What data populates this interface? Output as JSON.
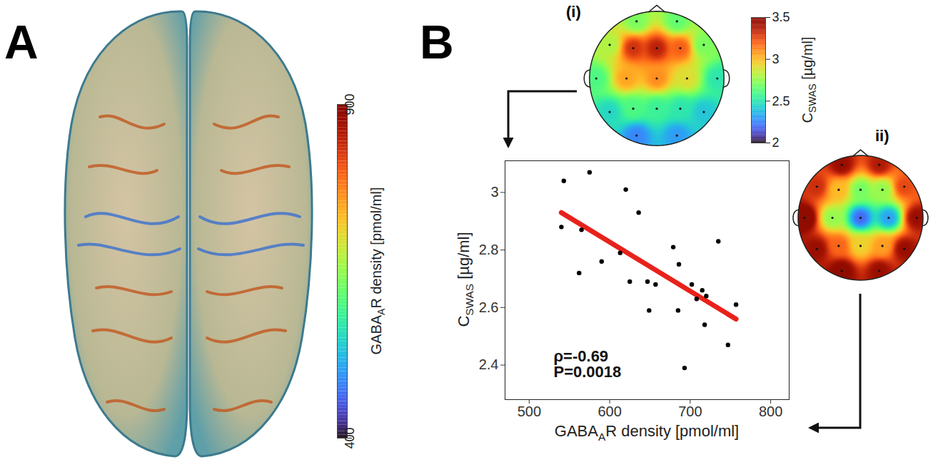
{
  "panels": {
    "A": {
      "letter": "A",
      "colorbar": {
        "label": {
          "main": "GABA",
          "sub": "A",
          "after": "R density [pmol/ml]"
        },
        "lim": [
          400,
          900
        ],
        "ticks": [
          400,
          900
        ]
      }
    },
    "B": {
      "letter": "B"
    }
  },
  "topomaps": [
    {
      "label": "(i)",
      "clim": [
        2,
        3.5
      ],
      "colorbar": {
        "label": {
          "main": "C",
          "sub": "SWAS",
          "after": " [µg/ml]"
        },
        "ticks": [
          2,
          2.5,
          3,
          3.5
        ]
      },
      "electrodes": [
        [
          -0.3,
          0.85,
          2.7
        ],
        [
          0.3,
          0.85,
          2.65
        ],
        [
          -0.7,
          0.5,
          2.8
        ],
        [
          -0.35,
          0.45,
          3.3
        ],
        [
          0,
          0.45,
          3.35
        ],
        [
          0.35,
          0.45,
          3.2
        ],
        [
          0.7,
          0.5,
          2.7
        ],
        [
          -0.9,
          0,
          2.6
        ],
        [
          -0.45,
          0,
          3.05
        ],
        [
          0,
          0,
          3.1
        ],
        [
          0.45,
          0,
          2.9
        ],
        [
          0.9,
          0,
          2.5
        ],
        [
          -0.7,
          -0.5,
          2.45
        ],
        [
          -0.35,
          -0.45,
          2.6
        ],
        [
          0,
          -0.45,
          2.55
        ],
        [
          0.35,
          -0.45,
          2.5
        ],
        [
          0.7,
          -0.5,
          2.4
        ],
        [
          -0.3,
          -0.85,
          2.25
        ],
        [
          0.3,
          -0.85,
          2.3
        ]
      ]
    },
    {
      "label": "ii)",
      "clim": [
        530,
        770
      ],
      "electrodes": [
        [
          -0.3,
          0.85,
          760
        ],
        [
          0.3,
          0.85,
          750
        ],
        [
          -0.7,
          0.5,
          740
        ],
        [
          -0.35,
          0.45,
          690
        ],
        [
          0,
          0.45,
          640
        ],
        [
          0.35,
          0.45,
          650
        ],
        [
          0.7,
          0.5,
          730
        ],
        [
          -0.9,
          0,
          780
        ],
        [
          -0.45,
          0,
          650
        ],
        [
          0,
          0,
          560
        ],
        [
          0.45,
          0,
          580
        ],
        [
          0.9,
          0,
          760
        ],
        [
          -0.7,
          -0.5,
          760
        ],
        [
          -0.35,
          -0.45,
          720
        ],
        [
          0,
          -0.45,
          680
        ],
        [
          0.35,
          -0.45,
          700
        ],
        [
          0.7,
          -0.5,
          760
        ],
        [
          -0.3,
          -0.85,
          770
        ],
        [
          0.3,
          -0.85,
          760
        ]
      ]
    }
  ],
  "chart_data": {
    "type": "scatter",
    "xlabel": {
      "main": "GABA",
      "sub": "A",
      "after": "R density [pmol/ml]"
    },
    "ylabel": {
      "main": "C",
      "sub": "SWAS",
      "after": " [µg/ml]"
    },
    "x": [
      540,
      543,
      562,
      565,
      575,
      590,
      613,
      620,
      625,
      636,
      647,
      649,
      657,
      679,
      685,
      686,
      693,
      702,
      708,
      715,
      718,
      720,
      735,
      747,
      757
    ],
    "values": [
      2.88,
      3.04,
      2.72,
      2.87,
      3.07,
      2.76,
      2.79,
      3.01,
      2.69,
      2.93,
      2.69,
      2.59,
      2.68,
      2.81,
      2.59,
      2.75,
      2.39,
      2.68,
      2.63,
      2.66,
      2.54,
      2.64,
      2.83,
      2.47,
      2.61
    ],
    "color": "#000000",
    "fit": {
      "x": [
        540,
        757
      ],
      "values": [
        2.93,
        2.56
      ],
      "color": "#e8221b"
    },
    "annotations": [
      "ρ=-0.69",
      "P=0.0018"
    ],
    "xlim": [
      470,
      823
    ],
    "ylim": [
      2.28,
      3.11
    ],
    "xticks": [
      500,
      600,
      700,
      800
    ],
    "yticks": [
      2.4,
      2.6,
      2.8,
      3
    ]
  }
}
